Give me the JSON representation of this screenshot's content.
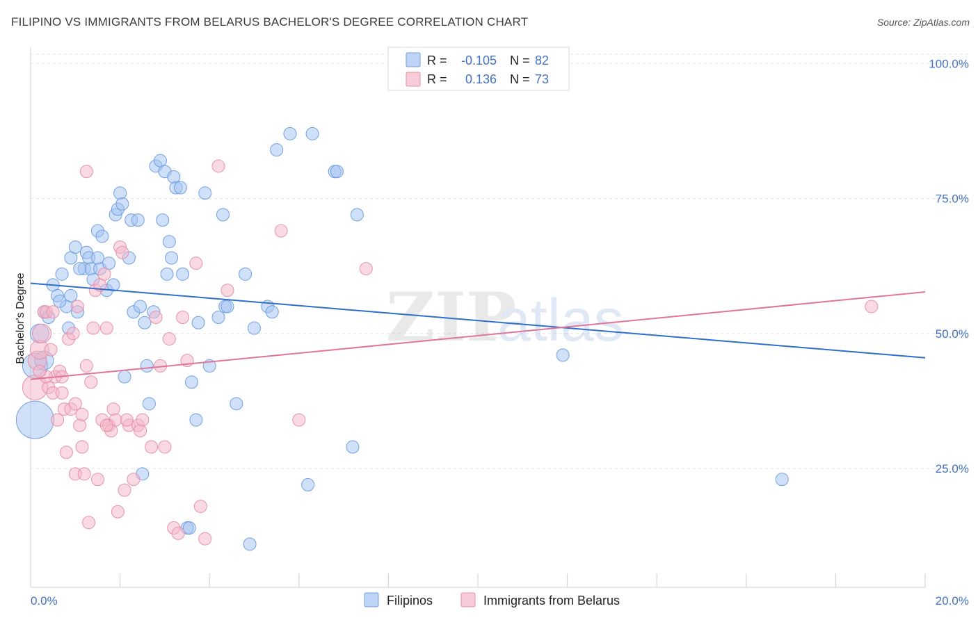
{
  "header": {
    "title": "FILIPINO VS IMMIGRANTS FROM BELARUS BACHELOR'S DEGREE CORRELATION CHART",
    "source": "Source: ZipAtlas.com"
  },
  "watermark": {
    "zip": "ZIP",
    "atlas": "atlas"
  },
  "legend_top": [
    {
      "r_label": "R = ",
      "r_value": "-0.105",
      "n_label": "N = ",
      "n_value": "82",
      "color": "#a4c2f4"
    },
    {
      "r_label": "R = ",
      "r_value": "0.136",
      "n_label": "N = ",
      "n_value": "73",
      "color": "#f4b6c8"
    }
  ],
  "chart_data": {
    "type": "scatter",
    "ylabel": "Bachelor's Degree",
    "x_tick_labels": [
      "0.0%",
      "20.0%"
    ],
    "y_tick_labels": [
      "100.0%",
      "75.0%",
      "50.0%",
      "25.0%"
    ],
    "xlim": [
      0,
      20
    ],
    "ylim": [
      3,
      103
    ],
    "y_ticks": [
      100,
      75,
      50,
      25
    ],
    "grid": true,
    "legend_position": "top-center",
    "series": [
      {
        "name": "Filipinos",
        "color": "#6fa0e0",
        "fill": "#a4c2f4",
        "line_color": "#2e6fcc",
        "trend": [
          [
            0,
            59.3
          ],
          [
            20,
            45.5
          ]
        ],
        "points": [
          [
            0.1,
            34,
            3
          ],
          [
            0.1,
            44,
            2
          ],
          [
            0.2,
            50,
            1.5
          ],
          [
            0.3,
            54,
            1
          ],
          [
            0.4,
            53,
            1
          ],
          [
            0.5,
            59,
            1
          ],
          [
            0.6,
            57,
            1
          ],
          [
            0.7,
            61,
            1
          ],
          [
            0.8,
            55,
            1
          ],
          [
            0.9,
            57,
            1
          ],
          [
            0.9,
            64,
            1
          ],
          [
            1.0,
            66,
            1
          ],
          [
            1.05,
            54,
            1
          ],
          [
            1.2,
            62,
            1
          ],
          [
            1.25,
            65,
            1
          ],
          [
            1.3,
            64,
            1
          ],
          [
            1.35,
            62,
            1
          ],
          [
            1.5,
            69,
            1
          ],
          [
            1.55,
            62,
            1
          ],
          [
            1.6,
            68,
            1
          ],
          [
            1.7,
            58,
            1
          ],
          [
            1.75,
            63,
            1
          ],
          [
            1.85,
            59,
            1
          ],
          [
            1.9,
            72,
            1
          ],
          [
            1.95,
            73,
            1
          ],
          [
            2.0,
            76,
            1
          ],
          [
            2.1,
            42,
            1
          ],
          [
            2.2,
            64,
            1
          ],
          [
            2.25,
            71,
            1
          ],
          [
            2.3,
            54,
            1
          ],
          [
            2.4,
            71,
            1
          ],
          [
            2.5,
            24,
            1
          ],
          [
            2.55,
            52,
            1
          ],
          [
            2.6,
            44,
            1
          ],
          [
            2.65,
            37,
            1
          ],
          [
            2.75,
            54,
            1
          ],
          [
            2.8,
            81,
            1
          ],
          [
            2.9,
            82,
            1
          ],
          [
            2.95,
            71,
            1
          ],
          [
            3.0,
            80,
            1
          ],
          [
            3.05,
            61,
            1
          ],
          [
            3.1,
            67,
            1
          ],
          [
            3.2,
            79,
            1
          ],
          [
            3.25,
            77,
            1
          ],
          [
            3.35,
            77,
            1
          ],
          [
            3.4,
            61,
            1
          ],
          [
            3.5,
            14,
            1
          ],
          [
            3.55,
            14,
            1
          ],
          [
            3.6,
            41,
            1
          ],
          [
            3.7,
            34,
            1
          ],
          [
            3.75,
            52,
            1
          ],
          [
            3.9,
            76,
            1
          ],
          [
            4.0,
            44,
            1
          ],
          [
            4.2,
            53,
            1
          ],
          [
            4.3,
            72,
            1
          ],
          [
            4.35,
            55,
            1
          ],
          [
            4.4,
            55,
            1
          ],
          [
            4.6,
            37,
            1
          ],
          [
            4.8,
            61,
            1
          ],
          [
            4.9,
            11,
            1
          ],
          [
            5.0,
            51,
            1
          ],
          [
            5.3,
            55,
            1
          ],
          [
            5.4,
            54,
            1
          ],
          [
            5.5,
            84,
            1
          ],
          [
            5.8,
            87,
            1
          ],
          [
            6.2,
            22,
            1
          ],
          [
            6.3,
            87,
            1
          ],
          [
            6.8,
            80,
            1
          ],
          [
            6.85,
            80,
            1
          ],
          [
            7.2,
            29,
            1
          ],
          [
            7.3,
            72,
            1
          ],
          [
            11.9,
            46,
            1
          ],
          [
            16.8,
            23,
            1
          ],
          [
            0.3,
            45,
            1.5
          ],
          [
            1.4,
            60,
            1
          ],
          [
            2.05,
            74,
            1
          ],
          [
            0.85,
            51,
            1
          ],
          [
            1.1,
            62,
            1
          ],
          [
            1.5,
            64,
            1
          ],
          [
            3.15,
            64,
            1
          ],
          [
            0.65,
            56,
            1
          ],
          [
            2.45,
            55,
            1
          ]
        ]
      },
      {
        "name": "Immigrants from Belarus",
        "color": "#e890aa",
        "fill": "#f4b6c8",
        "line_color": "#e07499",
        "trend": [
          [
            0,
            41.5
          ],
          [
            20,
            57.7
          ]
        ],
        "points": [
          [
            0.1,
            40,
            2
          ],
          [
            0.15,
            45,
            1.5
          ],
          [
            0.2,
            47,
            1.5
          ],
          [
            0.25,
            50,
            1.5
          ],
          [
            0.3,
            54,
            1
          ],
          [
            0.35,
            54,
            1
          ],
          [
            0.4,
            40,
            1
          ],
          [
            0.45,
            47,
            1
          ],
          [
            0.5,
            39,
            1
          ],
          [
            0.55,
            42,
            1
          ],
          [
            0.6,
            34,
            1
          ],
          [
            0.65,
            43,
            1
          ],
          [
            0.7,
            39,
            1
          ],
          [
            0.75,
            36,
            1
          ],
          [
            0.8,
            28,
            1
          ],
          [
            0.85,
            49,
            1
          ],
          [
            0.9,
            36,
            1
          ],
          [
            0.95,
            50,
            1
          ],
          [
            1.0,
            24,
            1
          ],
          [
            1.05,
            55,
            1
          ],
          [
            1.1,
            33,
            1
          ],
          [
            1.15,
            29,
            1
          ],
          [
            1.2,
            24,
            1
          ],
          [
            1.25,
            44,
            1
          ],
          [
            1.3,
            15,
            1
          ],
          [
            1.35,
            41,
            1
          ],
          [
            1.4,
            51,
            1
          ],
          [
            1.45,
            58,
            1
          ],
          [
            1.5,
            23,
            1
          ],
          [
            1.55,
            59,
            1
          ],
          [
            1.6,
            34,
            1
          ],
          [
            1.65,
            61,
            1
          ],
          [
            1.7,
            51,
            1
          ],
          [
            1.75,
            33,
            1
          ],
          [
            1.8,
            32,
            1
          ],
          [
            1.85,
            36,
            1
          ],
          [
            1.9,
            34,
            1
          ],
          [
            1.95,
            17,
            1
          ],
          [
            2.0,
            66,
            1
          ],
          [
            2.05,
            65,
            1
          ],
          [
            2.1,
            21,
            1
          ],
          [
            2.2,
            33,
            1
          ],
          [
            2.3,
            23,
            1
          ],
          [
            2.4,
            33,
            1
          ],
          [
            2.45,
            32,
            1
          ],
          [
            2.5,
            34,
            1
          ],
          [
            2.7,
            29,
            1
          ],
          [
            2.8,
            53,
            1
          ],
          [
            2.9,
            44,
            1
          ],
          [
            3.0,
            29,
            1
          ],
          [
            3.1,
            49,
            1
          ],
          [
            3.2,
            14,
            1
          ],
          [
            3.3,
            13,
            1
          ],
          [
            3.4,
            53,
            1
          ],
          [
            3.5,
            45,
            1
          ],
          [
            3.7,
            63,
            1
          ],
          [
            3.8,
            18,
            1
          ],
          [
            3.9,
            12,
            1
          ],
          [
            4.2,
            81,
            1
          ],
          [
            4.4,
            58,
            1
          ],
          [
            5.6,
            69,
            1
          ],
          [
            6.0,
            34,
            1
          ],
          [
            7.5,
            62,
            1
          ],
          [
            18.8,
            55,
            1
          ],
          [
            0.35,
            42,
            1
          ],
          [
            0.7,
            42,
            1
          ],
          [
            1.15,
            35,
            1
          ],
          [
            1.7,
            33,
            1
          ],
          [
            1.25,
            80,
            1
          ],
          [
            0.2,
            43,
            1
          ],
          [
            0.5,
            54,
            1
          ],
          [
            2.15,
            34,
            1
          ],
          [
            1.0,
            37,
            1
          ]
        ]
      }
    ]
  }
}
